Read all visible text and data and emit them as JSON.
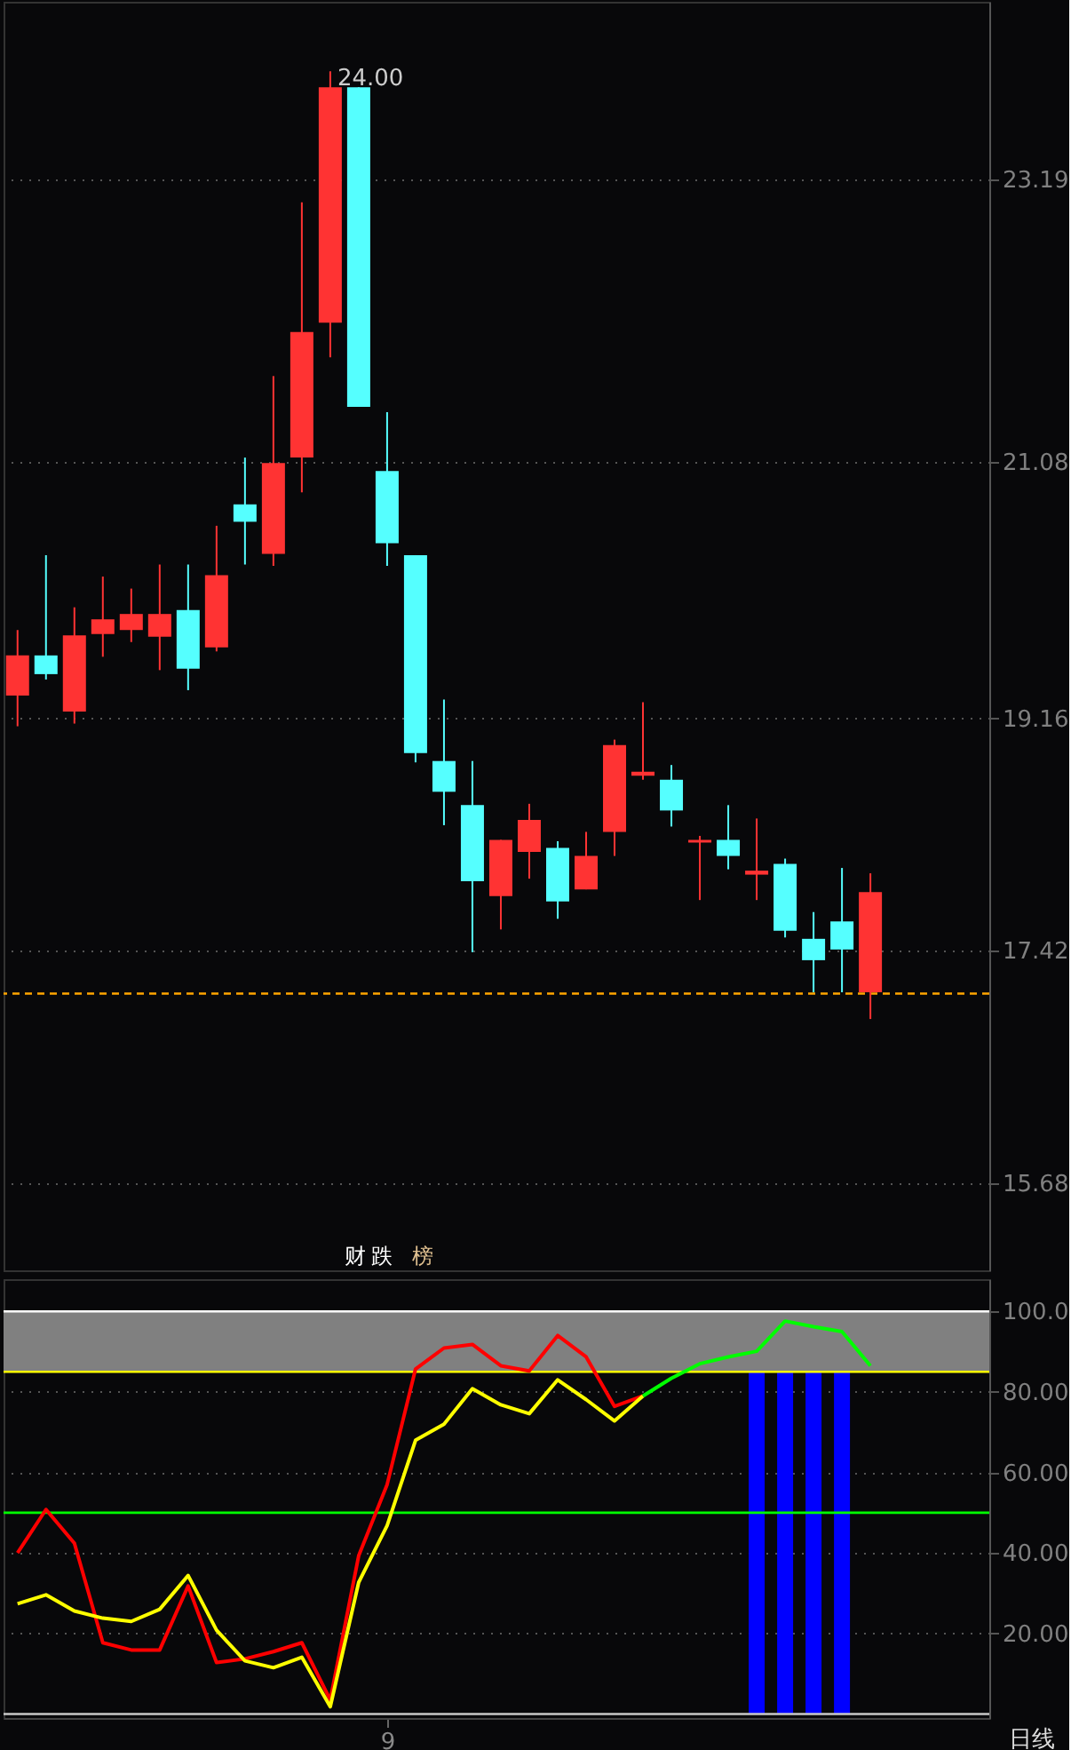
{
  "chart_data": [
    {
      "type": "candlestick",
      "categories": [
        null,
        null,
        null,
        null,
        null,
        null,
        null,
        null,
        null,
        null,
        null,
        null,
        null,
        null,
        null,
        null,
        null,
        null,
        null,
        null,
        null,
        null,
        null,
        null,
        null,
        null,
        null,
        null,
        null,
        null,
        null
      ],
      "ohlc": [
        [
          19.33,
          19.82,
          19.1,
          19.63
        ],
        [
          19.63,
          20.38,
          19.45,
          19.49
        ],
        [
          19.21,
          19.99,
          19.12,
          19.78
        ],
        [
          19.79,
          20.22,
          19.62,
          19.9
        ],
        [
          19.82,
          20.13,
          19.73,
          19.94
        ],
        [
          19.77,
          20.31,
          19.52,
          19.94
        ],
        [
          19.97,
          20.31,
          19.37,
          19.53
        ],
        [
          19.69,
          20.6,
          19.66,
          20.23
        ],
        [
          20.76,
          21.11,
          20.31,
          20.63
        ],
        [
          20.39,
          21.72,
          20.3,
          21.07
        ],
        [
          21.11,
          23.02,
          20.85,
          22.05
        ],
        [
          22.12,
          24.0,
          21.86,
          23.88
        ],
        [
          23.88,
          23.88,
          21.49,
          21.49
        ],
        [
          21.01,
          21.45,
          20.3,
          20.47
        ],
        [
          20.38,
          20.38,
          18.83,
          18.9
        ],
        [
          18.84,
          19.3,
          18.36,
          18.61
        ],
        [
          18.51,
          18.84,
          17.41,
          17.94
        ],
        [
          17.83,
          18.25,
          17.58,
          18.25
        ],
        [
          18.16,
          18.52,
          17.96,
          18.4
        ],
        [
          18.19,
          18.24,
          17.66,
          17.79
        ],
        [
          17.88,
          18.31,
          17.88,
          18.13
        ],
        [
          18.31,
          19.0,
          18.13,
          18.96
        ],
        [
          18.73,
          19.28,
          18.7,
          18.76
        ],
        [
          18.7,
          18.81,
          18.35,
          18.47
        ],
        [
          18.23,
          18.28,
          17.8,
          18.25
        ],
        [
          18.25,
          18.51,
          18.03,
          18.13
        ],
        [
          17.99,
          18.41,
          17.8,
          18.02
        ],
        [
          18.07,
          18.11,
          17.52,
          17.57
        ],
        [
          17.51,
          17.71,
          17.11,
          17.35
        ],
        [
          17.64,
          18.04,
          17.11,
          17.43
        ],
        [
          17.11,
          18.0,
          16.91,
          17.86
        ]
      ],
      "colors": [
        "#ff3333",
        "#55ffff",
        "#ff3333",
        "#ff3333",
        "#ff3333",
        "#ff3333",
        "#55ffff",
        "#ff3333",
        "#55ffff",
        "#ff3333",
        "#ff3333",
        "#ff3333",
        "#55ffff",
        "#55ffff",
        "#55ffff",
        "#55ffff",
        "#55ffff",
        "#ff3333",
        "#ff3333",
        "#55ffff",
        "#ff3333",
        "#ff3333",
        "#ff3333",
        "#55ffff",
        "#ff3333",
        "#55ffff",
        "#ff3333",
        "#55ffff",
        "#55ffff",
        "#55ffff",
        "#ff3333"
      ],
      "ylim": [
        15.03,
        24.52
      ],
      "yticks": [
        15.68,
        17.42,
        19.16,
        21.08,
        23.19
      ],
      "grid": "y",
      "tick_labels": "y",
      "ref_lines": [
        {
          "axis": "y",
          "value": 17.1,
          "color": "#ffa500",
          "line_style": "dashed"
        }
      ],
      "annotations": [
        "24.00",
        "财",
        "跌",
        "榜"
      ]
    },
    {
      "type": "line",
      "categories": [
        null,
        null,
        null,
        null,
        null,
        null,
        null,
        null,
        null,
        null,
        null,
        null,
        null,
        "9",
        null,
        null,
        null,
        null,
        null,
        null,
        null,
        null,
        null,
        null,
        null,
        null,
        null,
        null,
        null,
        null,
        null
      ],
      "series": [
        {
          "color": "#ff0000",
          "values": [
            40.0,
            50.8,
            42.4,
            17.7,
            15.9,
            15.9,
            31.8,
            12.8,
            13.7,
            15.5,
            17.7,
            3.5,
            39.3,
            57.0,
            85.7,
            90.9,
            91.8,
            86.5,
            85.2,
            94.0,
            88.7,
            76.4,
            79.0,
            null,
            null,
            null,
            null,
            null,
            null,
            null,
            null
          ]
        },
        {
          "color": "#ffff00",
          "values": [
            27.4,
            29.6,
            25.6,
            23.8,
            23.0,
            26.0,
            34.4,
            20.8,
            13.2,
            11.5,
            14.1,
            1.8,
            32.7,
            46.8,
            68.0,
            72.0,
            80.8,
            76.8,
            74.6,
            83.0,
            78.1,
            72.8,
            79.0,
            null,
            null,
            null,
            null,
            null,
            null,
            null,
            null
          ]
        },
        {
          "color": "#00ff00",
          "values": [
            null,
            null,
            null,
            null,
            null,
            null,
            null,
            null,
            null,
            null,
            null,
            null,
            null,
            null,
            null,
            null,
            null,
            null,
            null,
            null,
            null,
            null,
            79.0,
            83.4,
            87.0,
            88.7,
            90.1,
            97.6,
            96.2,
            95.0,
            86.5
          ]
        },
        {
          "type": "bar",
          "color": "#0000ff",
          "values": [
            null,
            null,
            null,
            null,
            null,
            null,
            null,
            null,
            null,
            null,
            null,
            null,
            null,
            null,
            null,
            null,
            null,
            null,
            null,
            null,
            null,
            null,
            null,
            null,
            null,
            null,
            85,
            85,
            85,
            85,
            null
          ]
        }
      ],
      "ylim": [
        -1,
        108
      ],
      "yticks": [
        {
          "value": 20,
          "label": "20.00"
        },
        {
          "value": 40,
          "label": "40.00"
        },
        {
          "value": 60,
          "label": "60.00"
        },
        {
          "value": 80,
          "label": "80.00"
        },
        {
          "value": 100,
          "label": "100.0"
        }
      ],
      "grid": "y",
      "bands": [
        {
          "axis": "y",
          "from": 85,
          "to": 100,
          "color": "#808080"
        }
      ],
      "ref_lines": [
        {
          "axis": "y",
          "value": 100,
          "color": "#ffffff"
        },
        {
          "axis": "y",
          "value": 85,
          "color": "#ffff00"
        },
        {
          "axis": "y",
          "value": 50,
          "color": "#00ff00"
        },
        {
          "axis": "y",
          "value": 0,
          "color": "#c8c8c8"
        }
      ],
      "annotations": [
        "日线"
      ]
    }
  ]
}
